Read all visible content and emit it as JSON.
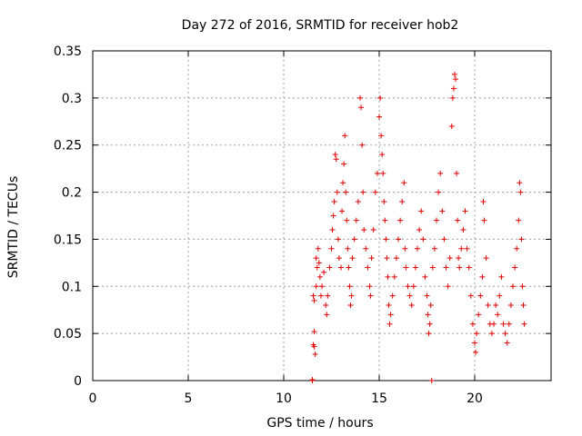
{
  "chart_data": {
    "type": "scatter",
    "title": "Day 272 of 2016, SRMTID for receiver hob2",
    "xlabel": "GPS time / hours",
    "ylabel": "SRMTID / TECUs",
    "xlim": [
      0,
      24
    ],
    "ylim": [
      0,
      0.35
    ],
    "xticks": [
      0,
      5,
      10,
      15,
      20
    ],
    "yticks": [
      0,
      0.05,
      0.1,
      0.15,
      0.2,
      0.25,
      0.3,
      0.35
    ],
    "xtick_labels": [
      "0",
      "5",
      "10",
      "15",
      "20"
    ],
    "ytick_labels": [
      "0",
      "0.05",
      "0.1",
      "0.15",
      "0.2",
      "0.25",
      "0.3",
      "0.35"
    ],
    "grid": true,
    "marker": "+",
    "marker_color": "#e00000",
    "series": [
      {
        "name": "SRMTID",
        "points": [
          [
            11.5,
            0.0
          ],
          [
            11.5,
            0.001
          ],
          [
            11.55,
            0.038
          ],
          [
            11.6,
            0.036
          ],
          [
            11.6,
            0.052
          ],
          [
            11.65,
            0.028
          ],
          [
            11.55,
            0.09
          ],
          [
            11.6,
            0.085
          ],
          [
            11.7,
            0.1
          ],
          [
            11.75,
            0.12
          ],
          [
            11.7,
            0.13
          ],
          [
            11.8,
            0.14
          ],
          [
            11.85,
            0.125
          ],
          [
            11.9,
            0.11
          ],
          [
            11.95,
            0.09
          ],
          [
            12.0,
            0.1
          ],
          [
            12.1,
            0.115
          ],
          [
            12.2,
            0.08
          ],
          [
            12.25,
            0.07
          ],
          [
            12.3,
            0.09
          ],
          [
            12.4,
            0.12
          ],
          [
            12.5,
            0.14
          ],
          [
            12.55,
            0.16
          ],
          [
            12.6,
            0.175
          ],
          [
            12.65,
            0.19
          ],
          [
            12.7,
            0.24
          ],
          [
            12.75,
            0.235
          ],
          [
            12.8,
            0.2
          ],
          [
            12.85,
            0.15
          ],
          [
            12.9,
            0.13
          ],
          [
            13.0,
            0.12
          ],
          [
            13.05,
            0.18
          ],
          [
            13.1,
            0.21
          ],
          [
            13.15,
            0.23
          ],
          [
            13.2,
            0.26
          ],
          [
            13.25,
            0.2
          ],
          [
            13.3,
            0.17
          ],
          [
            13.35,
            0.14
          ],
          [
            13.4,
            0.12
          ],
          [
            13.45,
            0.1
          ],
          [
            13.5,
            0.08
          ],
          [
            13.55,
            0.09
          ],
          [
            13.6,
            0.13
          ],
          [
            13.7,
            0.15
          ],
          [
            13.8,
            0.17
          ],
          [
            13.9,
            0.19
          ],
          [
            14.0,
            0.3
          ],
          [
            14.05,
            0.29
          ],
          [
            14.1,
            0.25
          ],
          [
            14.15,
            0.2
          ],
          [
            14.2,
            0.16
          ],
          [
            14.3,
            0.14
          ],
          [
            14.4,
            0.12
          ],
          [
            14.5,
            0.1
          ],
          [
            14.55,
            0.09
          ],
          [
            14.6,
            0.13
          ],
          [
            14.7,
            0.16
          ],
          [
            14.8,
            0.2
          ],
          [
            14.9,
            0.22
          ],
          [
            15.0,
            0.28
          ],
          [
            15.05,
            0.3
          ],
          [
            15.1,
            0.26
          ],
          [
            15.15,
            0.24
          ],
          [
            15.2,
            0.22
          ],
          [
            15.25,
            0.19
          ],
          [
            15.3,
            0.17
          ],
          [
            15.35,
            0.15
          ],
          [
            15.4,
            0.13
          ],
          [
            15.45,
            0.11
          ],
          [
            15.5,
            0.08
          ],
          [
            15.55,
            0.06
          ],
          [
            15.6,
            0.07
          ],
          [
            15.7,
            0.09
          ],
          [
            15.8,
            0.11
          ],
          [
            15.9,
            0.13
          ],
          [
            16.0,
            0.15
          ],
          [
            16.1,
            0.17
          ],
          [
            16.2,
            0.19
          ],
          [
            16.3,
            0.21
          ],
          [
            16.35,
            0.14
          ],
          [
            16.4,
            0.12
          ],
          [
            16.5,
            0.1
          ],
          [
            16.6,
            0.09
          ],
          [
            16.7,
            0.08
          ],
          [
            16.8,
            0.1
          ],
          [
            16.9,
            0.12
          ],
          [
            17.0,
            0.14
          ],
          [
            17.1,
            0.16
          ],
          [
            17.2,
            0.18
          ],
          [
            17.3,
            0.15
          ],
          [
            17.4,
            0.11
          ],
          [
            17.5,
            0.09
          ],
          [
            17.55,
            0.07
          ],
          [
            17.6,
            0.05
          ],
          [
            17.65,
            0.06
          ],
          [
            17.7,
            0.08
          ],
          [
            17.75,
            0.0
          ],
          [
            17.8,
            0.12
          ],
          [
            17.9,
            0.14
          ],
          [
            18.0,
            0.17
          ],
          [
            18.1,
            0.2
          ],
          [
            18.2,
            0.22
          ],
          [
            18.3,
            0.18
          ],
          [
            18.4,
            0.15
          ],
          [
            18.5,
            0.12
          ],
          [
            18.6,
            0.1
          ],
          [
            18.7,
            0.13
          ],
          [
            18.8,
            0.27
          ],
          [
            18.85,
            0.3
          ],
          [
            18.9,
            0.31
          ],
          [
            18.95,
            0.325
          ],
          [
            19.0,
            0.32
          ],
          [
            19.05,
            0.22
          ],
          [
            19.1,
            0.17
          ],
          [
            19.15,
            0.13
          ],
          [
            19.2,
            0.12
          ],
          [
            19.3,
            0.14
          ],
          [
            19.4,
            0.16
          ],
          [
            19.5,
            0.18
          ],
          [
            19.6,
            0.14
          ],
          [
            19.7,
            0.12
          ],
          [
            19.8,
            0.09
          ],
          [
            19.9,
            0.06
          ],
          [
            20.0,
            0.04
          ],
          [
            20.05,
            0.03
          ],
          [
            20.1,
            0.05
          ],
          [
            20.2,
            0.07
          ],
          [
            20.3,
            0.09
          ],
          [
            20.4,
            0.11
          ],
          [
            20.45,
            0.19
          ],
          [
            20.5,
            0.17
          ],
          [
            20.6,
            0.13
          ],
          [
            20.7,
            0.08
          ],
          [
            20.8,
            0.06
          ],
          [
            20.9,
            0.05
          ],
          [
            21.0,
            0.06
          ],
          [
            21.1,
            0.08
          ],
          [
            21.2,
            0.07
          ],
          [
            21.3,
            0.09
          ],
          [
            21.4,
            0.11
          ],
          [
            21.5,
            0.06
          ],
          [
            21.6,
            0.05
          ],
          [
            21.7,
            0.04
          ],
          [
            21.8,
            0.06
          ],
          [
            21.9,
            0.08
          ],
          [
            22.0,
            0.1
          ],
          [
            22.1,
            0.12
          ],
          [
            22.2,
            0.14
          ],
          [
            22.3,
            0.17
          ],
          [
            22.35,
            0.21
          ],
          [
            22.4,
            0.2
          ],
          [
            22.45,
            0.15
          ],
          [
            22.5,
            0.1
          ],
          [
            22.55,
            0.08
          ],
          [
            22.6,
            0.06
          ]
        ]
      }
    ]
  }
}
